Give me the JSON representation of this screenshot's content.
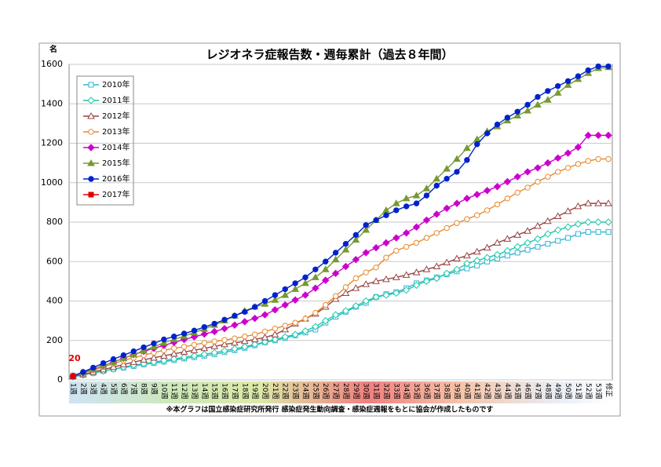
{
  "chart_data": {
    "type": "line",
    "title": "レジオネラ症報告数・週毎累計（過去８年間）",
    "y_label": "名",
    "footnote": "※本グラフは国立感染症研究所発行 感染症発生動向調査・感染症週報をもとに協会が作成したものです",
    "categories": [
      "1週",
      "2週",
      "3週",
      "4週",
      "5週",
      "6週",
      "7週",
      "8週",
      "9週",
      "10週",
      "11週",
      "12週",
      "13週",
      "14週",
      "15週",
      "16週",
      "17週",
      "18週",
      "19週",
      "20週",
      "21週",
      "22週",
      "23週",
      "24週",
      "25週",
      "26週",
      "27週",
      "28週",
      "29週",
      "30週",
      "31週",
      "32週",
      "33週",
      "34週",
      "35週",
      "36週",
      "37週",
      "38週",
      "39週",
      "40週",
      "41週",
      "42週",
      "43週",
      "44週",
      "45週",
      "46週",
      "47週",
      "48週",
      "49週",
      "50週",
      "51週",
      "52週",
      "53週",
      "修正"
    ],
    "ylim": [
      0,
      1600
    ],
    "yticks": [
      0,
      200,
      400,
      600,
      800,
      1000,
      1200,
      1400,
      1600
    ],
    "grid": true,
    "legend": "upper left",
    "series": [
      {
        "name": "2010年",
        "color": "#33b5d6",
        "marker": "square-open",
        "values": [
          15,
          25,
          35,
          45,
          55,
          62,
          70,
          78,
          85,
          92,
          100,
          108,
          115,
          122,
          130,
          140,
          150,
          162,
          175,
          190,
          200,
          212,
          225,
          240,
          255,
          290,
          320,
          345,
          370,
          390,
          420,
          435,
          445,
          465,
          490,
          505,
          520,
          535,
          550,
          565,
          580,
          600,
          615,
          630,
          645,
          660,
          675,
          690,
          705,
          720,
          740,
          750,
          750,
          750
        ]
      },
      {
        "name": "2011年",
        "color": "#1fc9a8",
        "marker": "diamond-open",
        "values": [
          15,
          25,
          35,
          45,
          55,
          65,
          75,
          82,
          90,
          98,
          106,
          115,
          122,
          130,
          138,
          148,
          158,
          168,
          180,
          192,
          205,
          218,
          230,
          248,
          270,
          300,
          330,
          350,
          375,
          400,
          420,
          430,
          440,
          455,
          480,
          500,
          515,
          540,
          560,
          590,
          605,
          620,
          635,
          655,
          675,
          695,
          715,
          740,
          760,
          775,
          790,
          800,
          800,
          800
        ]
      },
      {
        "name": "2012年",
        "color": "#994444",
        "marker": "triangle-open",
        "values": [
          18,
          28,
          40,
          52,
          65,
          78,
          90,
          102,
          112,
          122,
          132,
          142,
          150,
          160,
          170,
          180,
          188,
          196,
          205,
          215,
          230,
          255,
          285,
          310,
          335,
          370,
          410,
          440,
          465,
          485,
          500,
          510,
          520,
          532,
          545,
          560,
          575,
          595,
          615,
          630,
          650,
          670,
          695,
          715,
          735,
          755,
          780,
          805,
          830,
          855,
          880,
          895,
          895,
          895
        ]
      },
      {
        "name": "2013年",
        "color": "#e88a2e",
        "marker": "circle-open",
        "values": [
          20,
          35,
          50,
          65,
          82,
          98,
          112,
          125,
          138,
          150,
          160,
          168,
          178,
          188,
          195,
          202,
          210,
          220,
          230,
          245,
          260,
          275,
          290,
          310,
          340,
          380,
          425,
          470,
          515,
          545,
          570,
          620,
          655,
          675,
          695,
          720,
          745,
          770,
          795,
          815,
          835,
          860,
          890,
          920,
          950,
          975,
          1005,
          1030,
          1055,
          1075,
          1095,
          1110,
          1120,
          1120
        ]
      },
      {
        "name": "2014年",
        "color": "#cc00cc",
        "marker": "diamond",
        "values": [
          20,
          35,
          55,
          72,
          90,
          110,
          128,
          145,
          160,
          175,
          190,
          205,
          218,
          232,
          245,
          260,
          278,
          295,
          312,
          330,
          355,
          380,
          405,
          430,
          465,
          505,
          540,
          575,
          610,
          645,
          670,
          695,
          720,
          745,
          775,
          810,
          840,
          870,
          895,
          920,
          940,
          960,
          980,
          1005,
          1030,
          1055,
          1075,
          1100,
          1125,
          1150,
          1180,
          1240,
          1240,
          1240
        ]
      },
      {
        "name": "2015年",
        "color": "#779933",
        "marker": "triangle",
        "values": [
          20,
          38,
          55,
          72,
          90,
          110,
          128,
          148,
          168,
          188,
          205,
          222,
          240,
          258,
          278,
          300,
          325,
          350,
          370,
          385,
          405,
          430,
          460,
          490,
          520,
          560,
          610,
          660,
          710,
          760,
          810,
          860,
          895,
          920,
          935,
          970,
          1020,
          1070,
          1120,
          1175,
          1220,
          1260,
          1285,
          1315,
          1340,
          1365,
          1395,
          1420,
          1455,
          1495,
          1525,
          1555,
          1580,
          1585
        ]
      },
      {
        "name": "2016年",
        "color": "#0022cc",
        "marker": "circle",
        "values": [
          20,
          40,
          62,
          85,
          105,
          125,
          145,
          165,
          185,
          205,
          220,
          235,
          250,
          268,
          285,
          305,
          325,
          345,
          370,
          400,
          430,
          460,
          490,
          520,
          560,
          600,
          645,
          690,
          735,
          785,
          810,
          835,
          860,
          880,
          895,
          935,
          985,
          1020,
          1055,
          1115,
          1195,
          1250,
          1295,
          1330,
          1360,
          1395,
          1435,
          1465,
          1490,
          1515,
          1540,
          1570,
          1590,
          1590
        ]
      },
      {
        "name": "2017年",
        "color": "#e00000",
        "marker": "square",
        "values": [
          20,
          null,
          null,
          null,
          null,
          null,
          null,
          null,
          null,
          null,
          null,
          null,
          null,
          null,
          null,
          null,
          null,
          null,
          null,
          null,
          null,
          null,
          null,
          null,
          null,
          null,
          null,
          null,
          null,
          null,
          null,
          null,
          null,
          null,
          null,
          null,
          null,
          null,
          null,
          null,
          null,
          null,
          null,
          null,
          null,
          null,
          null,
          null,
          null,
          null,
          null,
          null,
          null,
          null
        ]
      }
    ]
  }
}
